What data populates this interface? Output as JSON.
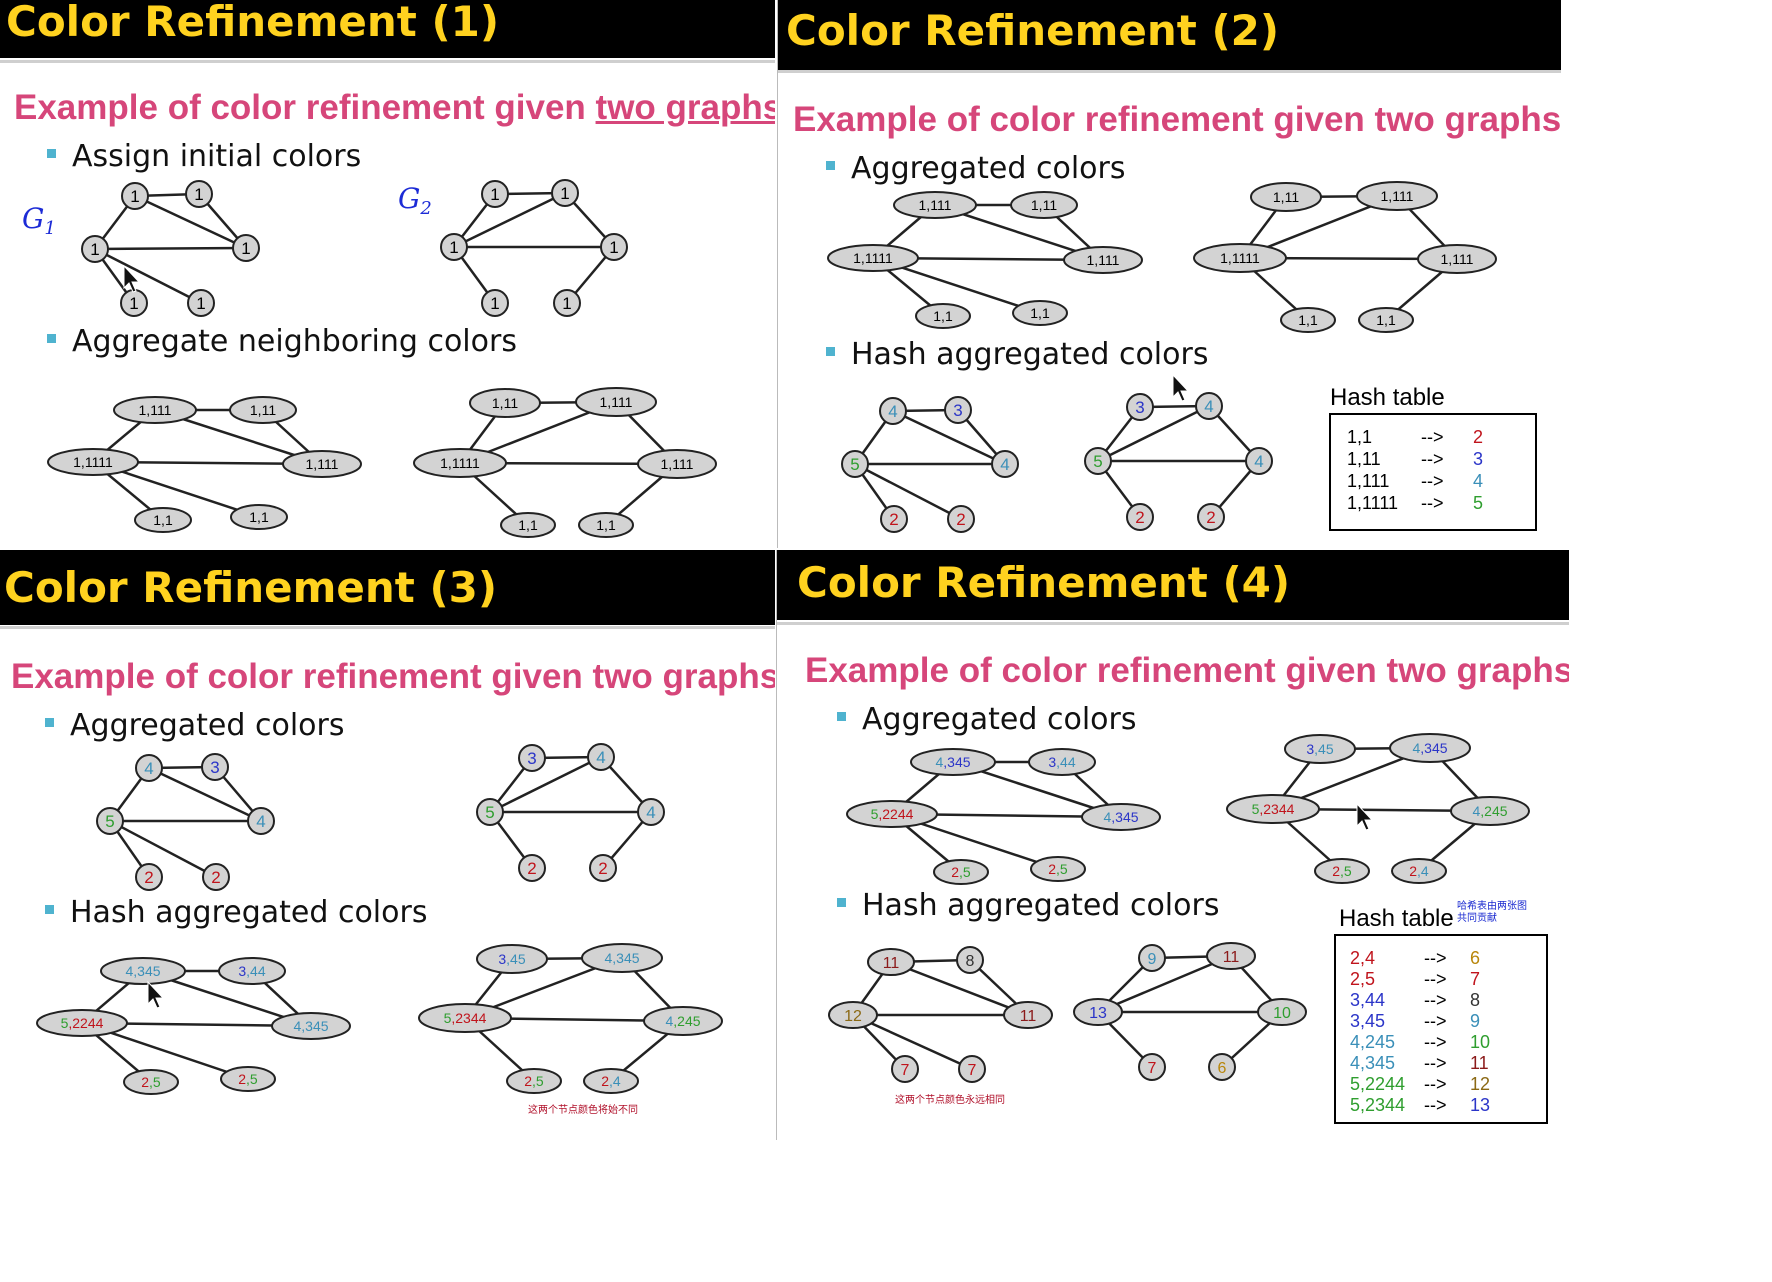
{
  "slides": [
    {
      "title": "Color Refinement (1)",
      "subtitle": "Example of color refinement given ",
      "subtitle_underlined": "two graphs",
      "bullets": [
        "Assign initial colors",
        "Aggregate neighboring colors"
      ],
      "graph_labels": {
        "g1": "G",
        "g1_sub": "1",
        "g2": "G",
        "g2_sub": "2"
      }
    },
    {
      "title": "Color Refinement (2)",
      "subtitle": "Example of color refinement given two graphs",
      "bullets": [
        "Aggregated colors",
        "Hash aggregated colors"
      ],
      "hash_title": "Hash table",
      "hash_rows": [
        {
          "key": "1,1",
          "arrow": "-->",
          "value": "2",
          "color": "#c0141c"
        },
        {
          "key": "1,11",
          "arrow": "-->",
          "value": "3",
          "color": "#2b35c8"
        },
        {
          "key": "1,111",
          "arrow": "-->",
          "value": "4",
          "color": "#3a8fb8"
        },
        {
          "key": "1,1111",
          "arrow": "-->",
          "value": "5",
          "color": "#2f9e2f"
        }
      ]
    },
    {
      "title": "Color Refinement (3)",
      "subtitle": "Example of color refinement given two graphs",
      "bullets": [
        "Aggregated colors",
        "Hash aggregated colors"
      ],
      "note": "这两个节点颜色将始不同"
    },
    {
      "title": "Color Refinement (4)",
      "subtitle": "Example of color refinement given two graphs",
      "bullets": [
        "Aggregated colors",
        "Hash aggregated colors"
      ],
      "hash_title": "Hash table",
      "hash_note_line1": "哈希表由两张图",
      "hash_note_line2": "共同贡献",
      "note": "这两个节点颜色永远相同",
      "hash_rows": [
        {
          "key": "2,4",
          "arrow": "-->",
          "value": "6",
          "color": "#b8860b"
        },
        {
          "key": "2,5",
          "arrow": "-->",
          "value": "7",
          "color": "#c0141c"
        },
        {
          "key": "3,44",
          "arrow": "-->",
          "value": "8",
          "color": "#333333"
        },
        {
          "key": "3,45",
          "arrow": "-->",
          "value": "9",
          "color": "#3a8fb8"
        },
        {
          "key": "4,245",
          "arrow": "-->",
          "value": "10",
          "color": "#2f9e2f"
        },
        {
          "key": "4,345",
          "arrow": "-->",
          "value": "11",
          "color": "#8b1a1a"
        },
        {
          "key": "5,2244",
          "arrow": "-->",
          "value": "12",
          "color": "#8b6914"
        },
        {
          "key": "5,2344",
          "arrow": "-->",
          "value": "13",
          "color": "#2b35c8"
        }
      ]
    }
  ],
  "graph_text": {
    "one": "1",
    "a11": "1,1",
    "a111": "1,11",
    "a1111": "1,111",
    "a11111": "1,1111",
    "n2": "2",
    "n3": "3",
    "n4": "4",
    "n5": "5",
    "p4": "4",
    "p345": ",345",
    "p3": "3",
    "p44": ",44",
    "p5": "5",
    "p2244": ",2244",
    "p2": "2",
    "p5b": ",5",
    "p45": ",45",
    "p2344": ",2344",
    "p245": ",245",
    "p4b": ",4",
    "p2b": "2",
    "h11": "11",
    "h8": "8",
    "h12": "12",
    "h7": "7",
    "h9": "9",
    "h13": "13",
    "h10": "10",
    "h6": "6"
  },
  "colors": {
    "yellow": "#ffd21f",
    "pink": "#d6467a",
    "bullet": "#4fb3cf",
    "node": "#d3d3d3",
    "c2": "#c0141c",
    "c3": "#2b35c8",
    "c4": "#3a8fb8",
    "c5": "#2f9e2f"
  }
}
